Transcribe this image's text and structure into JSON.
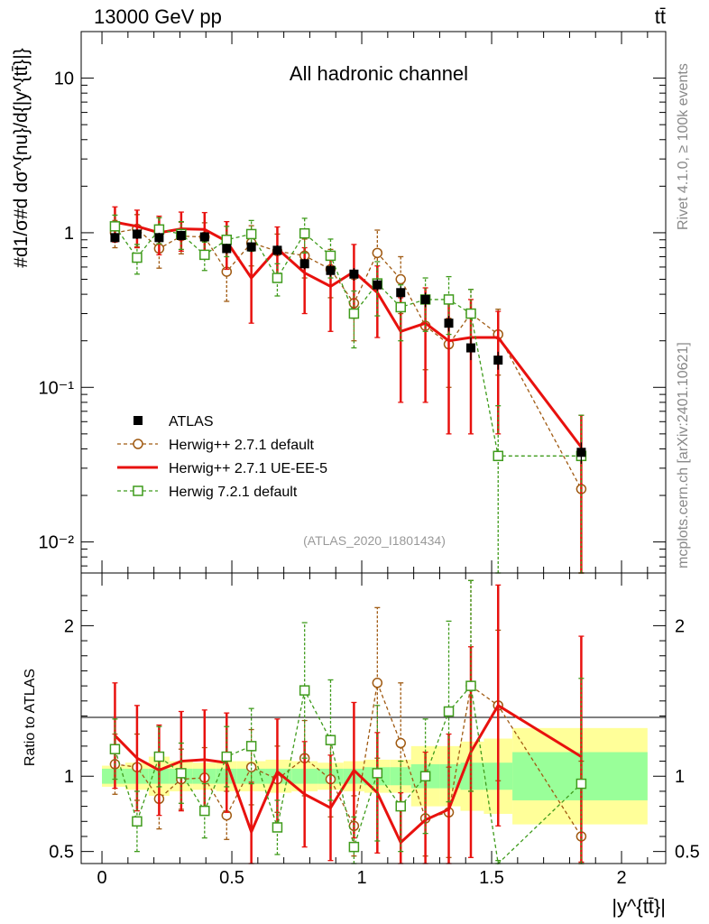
{
  "header": {
    "energy_label": "13000 GeV pp",
    "process_label": "tt̄"
  },
  "side_labels": {
    "rivet": "Rivet 4.1.0, ≥ 100k events",
    "mcplots": "mcplots.cern.ch [arXiv:2401.10621]"
  },
  "chart_data": [
    {
      "type": "line",
      "panel": "main",
      "title": "All hadronic channel",
      "analysis_label": "(ATLAS_2020_I1801434)",
      "xlabel": "|y^{tt̄}|",
      "ylabel": "#d1/σ#d dσ^{nu}/d{|y^{tt̄}|}",
      "yscale": "log",
      "xlim": [
        -0.08,
        2.17
      ],
      "ylim": [
        0.0063,
        20
      ],
      "ytick_labels": [
        "10⁻²",
        "10⁻¹",
        "1",
        "10"
      ],
      "series": [
        {
          "name": "ATLAS",
          "style": "data",
          "color": "#000000",
          "x": [
            0.05,
            0.135,
            0.22,
            0.305,
            0.395,
            0.48,
            0.575,
            0.675,
            0.78,
            0.88,
            0.97,
            1.06,
            1.15,
            1.245,
            1.335,
            1.42,
            1.525,
            1.845
          ],
          "values": [
            0.93,
            0.98,
            0.93,
            0.96,
            0.94,
            0.79,
            0.81,
            0.77,
            0.63,
            0.57,
            0.54,
            0.46,
            0.41,
            0.37,
            0.26,
            0.18,
            0.15,
            0.038
          ],
          "err_low": [
            0.07,
            0.07,
            0.07,
            0.07,
            0.07,
            0.06,
            0.06,
            0.06,
            0.05,
            0.05,
            0.05,
            0.04,
            0.04,
            0.04,
            0.03,
            0.03,
            0.02,
            0.006
          ],
          "err_high": [
            0.07,
            0.07,
            0.07,
            0.07,
            0.07,
            0.06,
            0.06,
            0.06,
            0.05,
            0.05,
            0.05,
            0.04,
            0.04,
            0.04,
            0.03,
            0.03,
            0.02,
            0.006
          ]
        },
        {
          "name": "Herwig++ 2.7.1 default",
          "style": "dashed-circle",
          "color": "#a05a12",
          "x": [
            0.05,
            0.135,
            0.22,
            0.305,
            0.395,
            0.48,
            0.575,
            0.675,
            0.78,
            0.88,
            0.97,
            1.06,
            1.15,
            1.245,
            1.335,
            1.42,
            1.525,
            1.845
          ],
          "values": [
            1.0,
            1.06,
            0.79,
            0.95,
            0.94,
            0.56,
            0.86,
            0.76,
            0.71,
            0.58,
            0.35,
            0.74,
            0.5,
            0.25,
            0.19,
            0.3,
            0.22,
            0.022
          ],
          "err_low": [
            0.2,
            0.25,
            0.2,
            0.22,
            0.22,
            0.2,
            0.25,
            0.22,
            0.2,
            0.2,
            0.15,
            0.3,
            0.2,
            0.12,
            0.09,
            0.13,
            0.1,
            0.018
          ],
          "err_high": [
            0.2,
            0.25,
            0.2,
            0.22,
            0.22,
            0.2,
            0.25,
            0.22,
            0.2,
            0.2,
            0.15,
            0.3,
            0.2,
            0.12,
            0.09,
            0.13,
            0.1,
            0.018
          ]
        },
        {
          "name": "Herwig++ 2.7.1 UE-EE-5",
          "style": "solid",
          "color": "#e8110e",
          "x": [
            0.05,
            0.135,
            0.22,
            0.305,
            0.395,
            0.48,
            0.575,
            0.675,
            0.78,
            0.88,
            0.97,
            1.06,
            1.15,
            1.245,
            1.335,
            1.42,
            1.525,
            1.845
          ],
          "values": [
            1.17,
            1.1,
            1.0,
            1.06,
            1.05,
            0.88,
            0.51,
            0.79,
            0.55,
            0.45,
            0.56,
            0.41,
            0.23,
            0.26,
            0.2,
            0.21,
            0.21,
            0.041
          ],
          "err_low": [
            0.3,
            0.3,
            0.28,
            0.3,
            0.3,
            0.3,
            0.25,
            0.3,
            0.25,
            0.22,
            0.28,
            0.2,
            0.15,
            0.18,
            0.15,
            0.16,
            0.16,
            0.037
          ],
          "err_high": [
            0.3,
            0.3,
            0.28,
            0.3,
            0.3,
            0.3,
            0.25,
            0.3,
            0.25,
            0.22,
            0.28,
            0.2,
            0.15,
            0.18,
            0.15,
            0.16,
            0.1,
            0.025
          ]
        },
        {
          "name": "Herwig 7.2.1 default",
          "style": "dashed-square",
          "color": "#3f9b1c",
          "x": [
            0.05,
            0.135,
            0.22,
            0.305,
            0.395,
            0.48,
            0.575,
            0.675,
            0.78,
            0.88,
            0.97,
            1.06,
            1.15,
            1.245,
            1.335,
            1.42,
            1.525,
            1.845
          ],
          "values": [
            1.1,
            0.69,
            1.05,
            0.98,
            0.72,
            0.9,
            0.98,
            0.51,
            0.99,
            0.71,
            0.3,
            0.47,
            0.33,
            0.37,
            0.37,
            0.3,
            0.036,
            0.036
          ],
          "err_low": [
            0.2,
            0.15,
            0.2,
            0.2,
            0.15,
            0.2,
            0.22,
            0.12,
            0.25,
            0.2,
            0.12,
            0.18,
            0.13,
            0.14,
            0.15,
            0.13,
            0.03,
            0.03
          ],
          "err_high": [
            0.2,
            0.15,
            0.2,
            0.2,
            0.15,
            0.2,
            0.22,
            0.12,
            0.25,
            0.2,
            0.12,
            0.18,
            0.13,
            0.14,
            0.15,
            0.13,
            0.04,
            0.03
          ]
        }
      ]
    },
    {
      "type": "line",
      "panel": "ratio",
      "ylabel": "Ratio to ATLAS",
      "xlabel": "|y^{tt̄}|",
      "xlim": [
        -0.08,
        2.17
      ],
      "ylim": [
        0.42,
        2.35
      ],
      "xtick_labels": [
        "0",
        "0.5",
        "1",
        "1.5",
        "2"
      ],
      "ytick_labels": [
        "0.5",
        "1",
        "2"
      ],
      "uncertainty_bands": {
        "edges": [
          0.0,
          0.09,
          0.18,
          0.26,
          0.35,
          0.44,
          0.52,
          0.63,
          0.73,
          0.83,
          0.93,
          1.01,
          1.11,
          1.19,
          1.3,
          1.38,
          1.47,
          1.58,
          2.1
        ],
        "inner": [
          0.05,
          0.05,
          0.05,
          0.05,
          0.05,
          0.05,
          0.05,
          0.05,
          0.05,
          0.05,
          0.05,
          0.06,
          0.06,
          0.08,
          0.08,
          0.09,
          0.09,
          0.16
        ],
        "outer": [
          0.07,
          0.09,
          0.13,
          0.1,
          0.09,
          0.1,
          0.1,
          0.11,
          0.1,
          0.09,
          0.1,
          0.11,
          0.11,
          0.2,
          0.2,
          0.23,
          0.25,
          0.32
        ]
      },
      "series": [
        {
          "name": "Herwig++ 2.7.1 default",
          "style": "dashed-circle",
          "color": "#a05a12",
          "x": [
            0.05,
            0.135,
            0.22,
            0.305,
            0.395,
            0.48,
            0.575,
            0.675,
            0.78,
            0.88,
            0.97,
            1.06,
            1.15,
            1.245,
            1.335,
            1.42,
            1.525,
            1.845
          ],
          "values": [
            1.08,
            1.06,
            0.85,
            0.98,
            0.99,
            0.74,
            1.06,
            0.98,
            1.12,
            0.98,
            0.67,
            1.62,
            1.22,
            0.72,
            0.76,
            1.6,
            1.47,
            0.6
          ],
          "err_low": [
            0.2,
            0.22,
            0.2,
            0.2,
            0.2,
            0.16,
            0.25,
            0.22,
            0.25,
            0.25,
            0.2,
            0.5,
            0.4,
            0.25,
            0.3,
            0.7,
            0.5,
            0.5
          ],
          "err_high": [
            0.2,
            0.22,
            0.2,
            0.2,
            0.2,
            0.16,
            0.25,
            0.22,
            0.25,
            0.25,
            0.2,
            0.5,
            0.4,
            0.25,
            0.3,
            0.7,
            0.5,
            0.5
          ]
        },
        {
          "name": "Herwig++ 2.7.1 UE-EE-5",
          "style": "solid",
          "color": "#e8110e",
          "x": [
            0.05,
            0.135,
            0.22,
            0.305,
            0.395,
            0.48,
            0.575,
            0.675,
            0.78,
            0.88,
            0.97,
            1.06,
            1.15,
            1.245,
            1.335,
            1.42,
            1.525,
            1.845
          ],
          "values": [
            1.27,
            1.12,
            1.04,
            1.1,
            1.11,
            1.09,
            0.63,
            1.03,
            0.88,
            0.79,
            1.04,
            0.89,
            0.56,
            0.71,
            0.78,
            1.16,
            1.47,
            1.13
          ],
          "err_low": [
            0.35,
            0.35,
            0.3,
            0.33,
            0.33,
            0.33,
            0.33,
            0.35,
            0.35,
            0.35,
            0.45,
            0.4,
            0.33,
            0.45,
            0.5,
            0.7,
            0.8,
            0.7
          ],
          "err_high": [
            0.35,
            0.35,
            0.3,
            0.33,
            0.33,
            0.33,
            0.33,
            0.35,
            0.35,
            0.35,
            0.45,
            0.4,
            0.33,
            0.45,
            0.5,
            0.7,
            0.8,
            0.8
          ]
        },
        {
          "name": "Herwig 7.2.1 default",
          "style": "dashed-square",
          "color": "#3f9b1c",
          "x": [
            0.05,
            0.135,
            0.22,
            0.305,
            0.395,
            0.48,
            0.575,
            0.675,
            0.78,
            0.88,
            0.97,
            1.06,
            1.15,
            1.245,
            1.335,
            1.42,
            1.525,
            1.845
          ],
          "values": [
            1.18,
            0.7,
            1.13,
            1.02,
            0.77,
            1.13,
            1.2,
            0.66,
            1.57,
            1.24,
            0.53,
            1.02,
            0.8,
            1.0,
            1.43,
            1.6,
            0.24,
            0.95
          ],
          "err_low": [
            0.2,
            0.2,
            0.2,
            0.2,
            0.18,
            0.2,
            0.25,
            0.18,
            0.45,
            0.4,
            0.2,
            0.45,
            0.3,
            0.38,
            0.6,
            0.7,
            0.2,
            0.7
          ],
          "err_high": [
            0.2,
            0.2,
            0.2,
            0.2,
            0.18,
            0.2,
            0.25,
            0.18,
            0.45,
            0.4,
            0.2,
            0.45,
            0.3,
            0.38,
            0.6,
            0.7,
            0.2,
            0.7
          ]
        }
      ]
    }
  ]
}
